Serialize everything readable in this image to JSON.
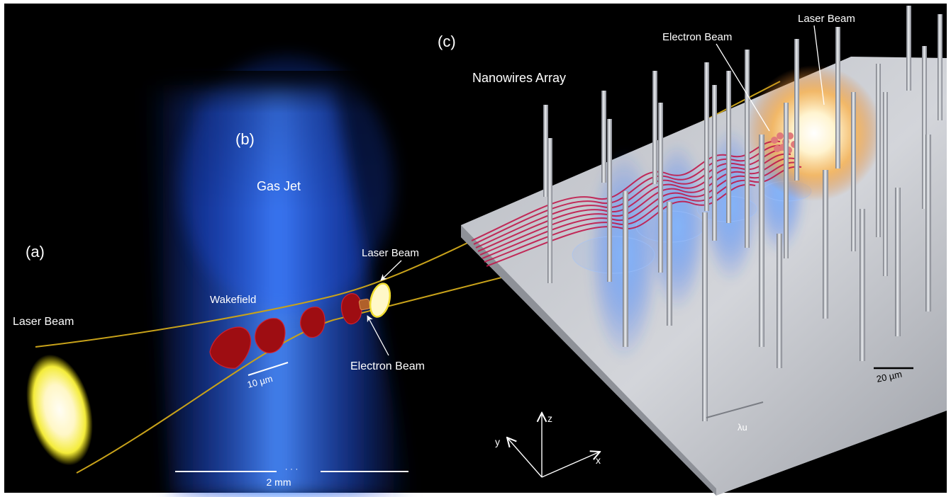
{
  "panels": {
    "a": {
      "label": "(a)"
    },
    "b": {
      "label": "(b)"
    },
    "c": {
      "label": "(c)"
    }
  },
  "labels": {
    "laser_beam_a": "Laser Beam",
    "gas_jet": "Gas Jet",
    "wakefield": "Wakefield",
    "laser_beam_b": "Laser Beam",
    "electron_beam_b": "Electron Beam",
    "nanowires_array": "Nanowires Array",
    "electron_beam_c": "Electron Beam",
    "laser_beam_c": "Laser Beam",
    "lambda_u": "λu"
  },
  "scale_bars": {
    "wake": "10 µm",
    "gas_jet": "2 mm",
    "gas_jet_break": "· · ·",
    "nanowire": "20 µm"
  },
  "axes": {
    "x": "x",
    "y": "y",
    "z": "z"
  },
  "colors": {
    "background": "#000000",
    "frame": "#ffffff",
    "laser_envelope": "#c8a21a",
    "gas_jet": "#3d7cff",
    "wake_bubble": "#9e0d12",
    "electron_trajectory": "#c0184a",
    "plate": "#c9cbd1",
    "nanowire": "#b9bcc4"
  }
}
